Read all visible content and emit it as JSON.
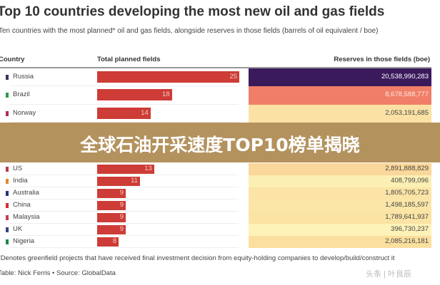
{
  "title": "Top 10 countries developing the most new oil and gas fields",
  "subtitle": "Ten countries with the most planned* oil and gas fields, alongside reserves in those fields (barrels of oil equivalent / boe)",
  "overlay_title": "全球石油开采速度TOP10榜单揭晓",
  "watermark": "头条 | 叶良辰",
  "footnote": "*Denotes greenfield projects that have received final investment decision from equity-holding companies to develop/build/construct it",
  "credit": "Table: Nick Ferris • Source: GlobalData",
  "chart_data": {
    "type": "table",
    "columns": [
      "Country",
      "Total planned fields",
      "Reserves in those fields (boe)"
    ],
    "bar_color": "#cd3c36",
    "rows": [
      {
        "country": "Russia",
        "fields": 25,
        "reserves": "20,538,990,283",
        "cell_color": "#3b1a5c",
        "text_color": "#ffffff",
        "flag_color": "#333366"
      },
      {
        "country": "Brazil",
        "fields": 18,
        "reserves": "8,678,588,777",
        "cell_color": "#f07e68",
        "text_color": "#ffe8e0",
        "flag_color": "#2a9a4a"
      },
      {
        "country": "Norway",
        "fields": 14,
        "reserves": "2,053,191,685",
        "cell_color": "#fbe2a4",
        "text_color": "#444444",
        "flag_color": "#b03050"
      },
      {
        "country": "US",
        "fields": 13,
        "reserves": "2,891,888,829",
        "cell_color": "#fad79a",
        "text_color": "#444444",
        "flag_color": "#b04040"
      },
      {
        "country": "India",
        "fields": 11,
        "reserves": "408,799,096",
        "cell_color": "#fcefb4",
        "text_color": "#444444",
        "flag_color": "#e08a30"
      },
      {
        "country": "Australia",
        "fields": 9,
        "reserves": "1,805,705,723",
        "cell_color": "#fbe4a6",
        "text_color": "#444444",
        "flag_color": "#223377"
      },
      {
        "country": "China",
        "fields": 9,
        "reserves": "1,498,185,597",
        "cell_color": "#fbe6a8",
        "text_color": "#444444",
        "flag_color": "#d03030"
      },
      {
        "country": "Malaysia",
        "fields": 9,
        "reserves": "1,789,641,937",
        "cell_color": "#fbe3a4",
        "text_color": "#444444",
        "flag_color": "#c04050"
      },
      {
        "country": "UK",
        "fields": 9,
        "reserves": "396,730,237",
        "cell_color": "#fdf2b8",
        "text_color": "#444444",
        "flag_color": "#334488"
      },
      {
        "country": "Nigeria",
        "fields": 8,
        "reserves": "2,085,216,181",
        "cell_color": "#fbdf9e",
        "text_color": "#444444",
        "flag_color": "#1a8a4a"
      }
    ]
  }
}
